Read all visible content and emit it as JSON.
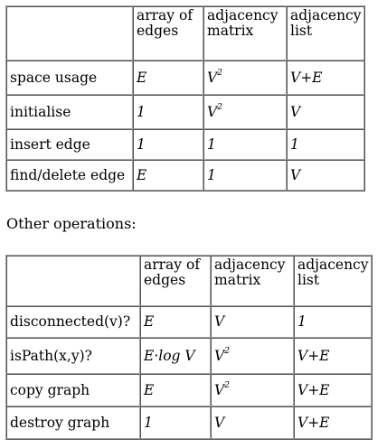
{
  "table1": {
    "headers": [
      "",
      "array of edges",
      "adjacency matrix",
      "adjacency list"
    ],
    "rows": [
      {
        "operation": "space usage",
        "array": "E",
        "matrix_base": "V",
        "matrix_sup": "2",
        "list": "V+E"
      },
      {
        "operation": "initialise",
        "array": "1",
        "matrix_base": "V",
        "matrix_sup": "2",
        "list": "V"
      },
      {
        "operation": "insert edge",
        "array": "1",
        "matrix_base": "1",
        "matrix_sup": "",
        "list": "1"
      },
      {
        "operation": "find/delete edge",
        "array": "E",
        "matrix_base": "1",
        "matrix_sup": "",
        "list": "V"
      }
    ]
  },
  "caption": "Other operations:",
  "table2": {
    "headers": [
      "",
      "array of edges",
      "adjacency matrix",
      "adjacency list"
    ],
    "rows": [
      {
        "operation": "disconnected(v)?",
        "array": "E",
        "matrix_base": "V",
        "matrix_sup": "",
        "list": "1"
      },
      {
        "operation": "isPath(x,y)?",
        "array": "E·log V",
        "matrix_base": "V",
        "matrix_sup": "2",
        "list": "V+E"
      },
      {
        "operation": "copy graph",
        "array": "E",
        "matrix_base": "V",
        "matrix_sup": "2",
        "list": "V+E"
      },
      {
        "operation": "destroy graph",
        "array": "1",
        "matrix_base": "V",
        "matrix_sup": "",
        "list": "V+E"
      }
    ]
  }
}
